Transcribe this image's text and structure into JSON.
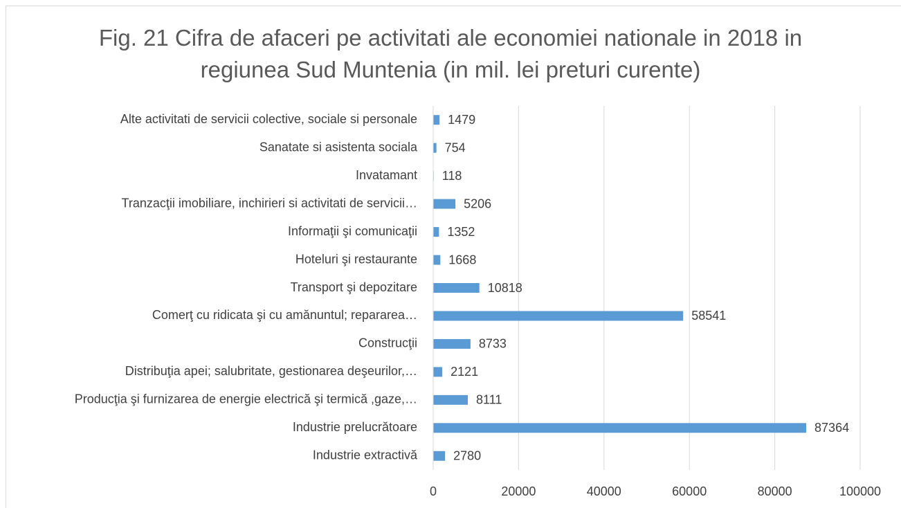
{
  "chart_data": {
    "type": "barh",
    "title": "Fig. 21 Cifra de afaceri pe activitati ale economiei nationale in 2018 in regiunea Sud Muntenia (in mil. lei preturi curente)",
    "categories": [
      "Industrie extractivă",
      "Industrie prelucrătoare",
      "Producţia şi furnizarea de energie electrică şi termică ,gaze,…",
      "Distribuţia apei; salubritate, gestionarea deşeurilor,…",
      "Construcţii",
      "Comerţ cu ridicata şi cu amănuntul; repararea…",
      "Transport şi depozitare",
      "Hoteluri şi restaurante",
      "Informaţii şi comunicaţii",
      "Tranzacţii imobiliare, inchirieri si activitati de servicii…",
      "Invatamant",
      "Sanatate si asistenta sociala",
      "Alte activitati de servicii colective, sociale si personale"
    ],
    "values": [
      2780,
      87364,
      8111,
      2121,
      8733,
      58541,
      10818,
      1668,
      1352,
      5206,
      118,
      754,
      1479
    ],
    "color": "#5b9bd5",
    "xlim": [
      0,
      100000
    ],
    "xticks": [
      0,
      20000,
      40000,
      60000,
      80000,
      100000
    ],
    "grid": true
  }
}
